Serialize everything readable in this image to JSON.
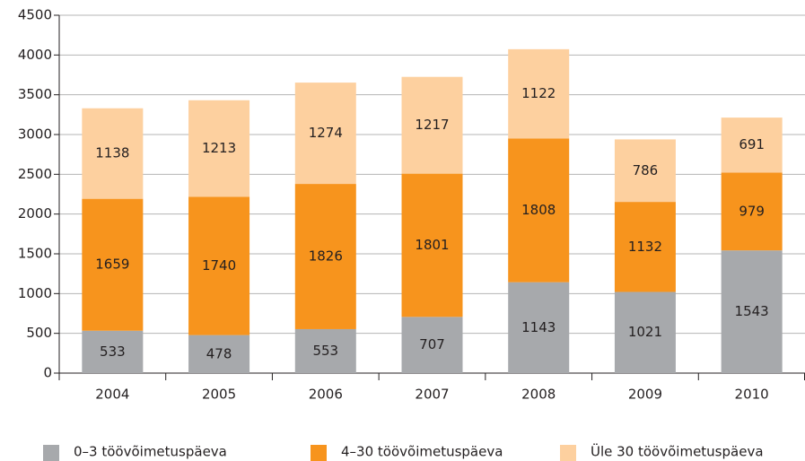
{
  "chart_data": {
    "type": "stacked_bar",
    "categories": [
      "2004",
      "2005",
      "2006",
      "2007",
      "2008",
      "2009",
      "2010"
    ],
    "series": [
      {
        "name": "0–3 töövõimetuspäeva",
        "color": "#a7a9ac",
        "values": [
          533,
          478,
          553,
          707,
          1143,
          1021,
          1543
        ]
      },
      {
        "name": "4–30 töövõimetuspäeva",
        "color": "#f7941d",
        "values": [
          1659,
          1740,
          1826,
          1801,
          1808,
          1132,
          979
        ]
      },
      {
        "name": "Üle 30 töövõimetuspäeva",
        "color": "#fdd09f",
        "values": [
          1138,
          1213,
          1274,
          1217,
          1122,
          786,
          691
        ]
      }
    ],
    "ylim": [
      0,
      4500
    ],
    "yticks": [
      0,
      500,
      1000,
      1500,
      2000,
      2500,
      3000,
      3500,
      4000,
      4500
    ],
    "grid": true,
    "legend": "bottom"
  }
}
